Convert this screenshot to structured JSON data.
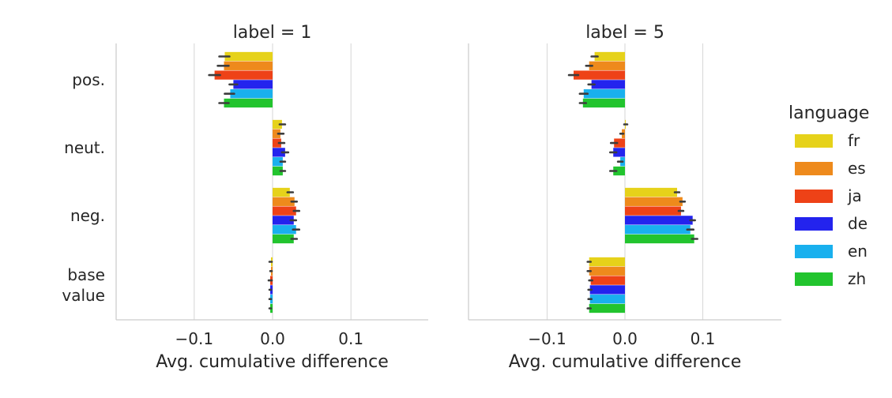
{
  "chart_data": {
    "type": "bar",
    "orientation": "horizontal",
    "xlabel": "Avg. cumulative difference",
    "xlim": [
      -0.2,
      0.2
    ],
    "xticks": [
      -0.1,
      0.0,
      0.1
    ],
    "xtick_labels": [
      "−0.1",
      "0.0",
      "0.1"
    ],
    "grid": "vertical",
    "categories": [
      "pos.",
      "neut.",
      "neg.",
      "base value"
    ],
    "category_labels": [
      [
        "pos."
      ],
      [
        "neut."
      ],
      [
        "neg."
      ],
      [
        "base",
        "value"
      ]
    ],
    "legend": {
      "title": "language",
      "placement": "right",
      "entries": [
        "fr",
        "es",
        "ja",
        "de",
        "en",
        "zh"
      ]
    },
    "colors": {
      "fr": "#e6d21a",
      "es": "#ee8a1c",
      "ja": "#ee4217",
      "de": "#2323ee",
      "en": "#19b0ee",
      "zh": "#22c42e"
    },
    "panels": [
      {
        "title": "label = 1",
        "series": [
          {
            "name": "fr",
            "values": [
              -0.061,
              0.012,
              0.022,
              -0.002
            ],
            "ci": [
              [
                -0.068,
                -0.055
              ],
              [
                0.009,
                0.016
              ],
              [
                0.019,
                0.026
              ],
              [
                -0.004,
                -0.001
              ]
            ]
          },
          {
            "name": "es",
            "values": [
              -0.062,
              0.01,
              0.028,
              -0.002
            ],
            "ci": [
              [
                -0.07,
                -0.056
              ],
              [
                0.007,
                0.014
              ],
              [
                0.024,
                0.031
              ],
              [
                -0.003,
                -0.001
              ]
            ]
          },
          {
            "name": "ja",
            "values": [
              -0.074,
              0.011,
              0.03,
              -0.003
            ],
            "ci": [
              [
                -0.081,
                -0.067
              ],
              [
                0.008,
                0.015
              ],
              [
                0.027,
                0.034
              ],
              [
                -0.005,
                -0.001
              ]
            ]
          },
          {
            "name": "de",
            "values": [
              -0.05,
              0.016,
              0.027,
              -0.003
            ],
            "ci": [
              [
                -0.055,
                -0.045
              ],
              [
                0.012,
                0.02
              ],
              [
                0.023,
                0.03
              ],
              [
                -0.004,
                -0.002
              ]
            ]
          },
          {
            "name": "en",
            "values": [
              -0.054,
              0.013,
              0.03,
              -0.003
            ],
            "ci": [
              [
                -0.061,
                -0.049
              ],
              [
                0.01,
                0.016
              ],
              [
                0.026,
                0.034
              ],
              [
                -0.004,
                -0.002
              ]
            ]
          },
          {
            "name": "zh",
            "values": [
              -0.062,
              0.013,
              0.027,
              -0.003
            ],
            "ci": [
              [
                -0.068,
                -0.056
              ],
              [
                0.01,
                0.016
              ],
              [
                0.024,
                0.031
              ],
              [
                -0.004,
                -0.002
              ]
            ]
          }
        ]
      },
      {
        "title": "label = 5",
        "series": [
          {
            "name": "fr",
            "values": [
              -0.039,
              0.001,
              0.067,
              -0.046
            ],
            "ci": [
              [
                -0.043,
                -0.035
              ],
              [
                -0.001,
                0.003
              ],
              [
                0.064,
                0.07
              ],
              [
                -0.048,
                -0.044
              ]
            ]
          },
          {
            "name": "es",
            "values": [
              -0.046,
              -0.004,
              0.074,
              -0.046
            ],
            "ci": [
              [
                -0.05,
                -0.042
              ],
              [
                -0.006,
                -0.002
              ],
              [
                0.071,
                0.077
              ],
              [
                -0.048,
                -0.044
              ]
            ]
          },
          {
            "name": "ja",
            "values": [
              -0.066,
              -0.014,
              0.072,
              -0.044
            ],
            "ci": [
              [
                -0.072,
                -0.06
              ],
              [
                -0.018,
                -0.01
              ],
              [
                0.069,
                0.075
              ],
              [
                -0.046,
                -0.042
              ]
            ]
          },
          {
            "name": "de",
            "values": [
              -0.043,
              -0.015,
              0.087,
              -0.045
            ],
            "ci": [
              [
                -0.047,
                -0.039
              ],
              [
                -0.019,
                -0.011
              ],
              [
                0.084,
                0.09
              ],
              [
                -0.047,
                -0.043
              ]
            ]
          },
          {
            "name": "en",
            "values": [
              -0.053,
              -0.006,
              0.084,
              -0.045
            ],
            "ci": [
              [
                -0.058,
                -0.048
              ],
              [
                -0.009,
                -0.003
              ],
              [
                0.08,
                0.088
              ],
              [
                -0.047,
                -0.043
              ]
            ]
          },
          {
            "name": "zh",
            "values": [
              -0.054,
              -0.015,
              0.089,
              -0.046
            ],
            "ci": [
              [
                -0.058,
                -0.05
              ],
              [
                -0.019,
                -0.011
              ],
              [
                0.086,
                0.093
              ],
              [
                -0.048,
                -0.044
              ]
            ]
          }
        ]
      }
    ]
  }
}
